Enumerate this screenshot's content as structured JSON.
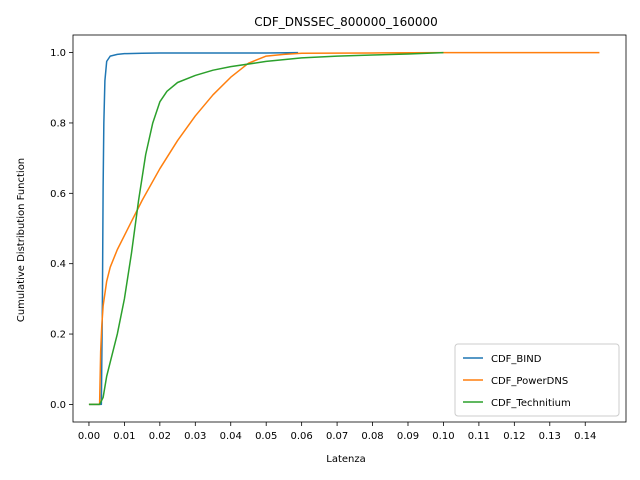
{
  "chart_data": {
    "type": "line",
    "title": "CDF_DNSSEC_800000_160000",
    "xlabel": "Latenza",
    "ylabel": "Cumulative Distribution Function",
    "xlim": [
      -0.0045,
      0.1515
    ],
    "ylim": [
      -0.05,
      1.05
    ],
    "xticks": [
      "0.00",
      "0.01",
      "0.02",
      "0.03",
      "0.04",
      "0.05",
      "0.06",
      "0.07",
      "0.08",
      "0.09",
      "0.10",
      "0.11",
      "0.12",
      "0.13",
      "0.14"
    ],
    "yticks": [
      "0.0",
      "0.2",
      "0.4",
      "0.6",
      "0.8",
      "1.0"
    ],
    "grid": false,
    "legend_position": "lower right",
    "series": [
      {
        "name": "CDF_BIND",
        "color": "#1f77b4",
        "x": [
          0.0,
          0.0035,
          0.0038,
          0.004,
          0.0042,
          0.0045,
          0.005,
          0.006,
          0.008,
          0.01,
          0.015,
          0.02,
          0.03,
          0.04,
          0.05,
          0.059
        ],
        "y": [
          0.0,
          0.0,
          0.3,
          0.62,
          0.8,
          0.92,
          0.975,
          0.99,
          0.995,
          0.997,
          0.998,
          0.999,
          0.999,
          0.999,
          0.999,
          1.0
        ]
      },
      {
        "name": "CDF_PowerDNS",
        "color": "#ff7f0e",
        "x": [
          0.0,
          0.003,
          0.0033,
          0.0036,
          0.004,
          0.005,
          0.006,
          0.008,
          0.01,
          0.012,
          0.015,
          0.02,
          0.025,
          0.03,
          0.035,
          0.04,
          0.045,
          0.05,
          0.055,
          0.06,
          0.08,
          0.1,
          0.12,
          0.144
        ],
        "y": [
          0.0,
          0.0,
          0.15,
          0.22,
          0.28,
          0.35,
          0.39,
          0.44,
          0.48,
          0.52,
          0.58,
          0.67,
          0.75,
          0.82,
          0.88,
          0.93,
          0.97,
          0.99,
          0.995,
          0.998,
          0.999,
          1.0,
          1.0,
          1.0
        ]
      },
      {
        "name": "CDF_Technitium",
        "color": "#2ca02c",
        "x": [
          0.0,
          0.003,
          0.004,
          0.005,
          0.006,
          0.008,
          0.01,
          0.012,
          0.014,
          0.016,
          0.018,
          0.02,
          0.022,
          0.025,
          0.03,
          0.035,
          0.04,
          0.05,
          0.06,
          0.07,
          0.08,
          0.09,
          0.1
        ],
        "y": [
          0.0,
          0.0,
          0.02,
          0.08,
          0.12,
          0.2,
          0.3,
          0.43,
          0.58,
          0.71,
          0.8,
          0.86,
          0.89,
          0.915,
          0.935,
          0.95,
          0.96,
          0.975,
          0.985,
          0.99,
          0.993,
          0.996,
          1.0
        ]
      }
    ]
  }
}
